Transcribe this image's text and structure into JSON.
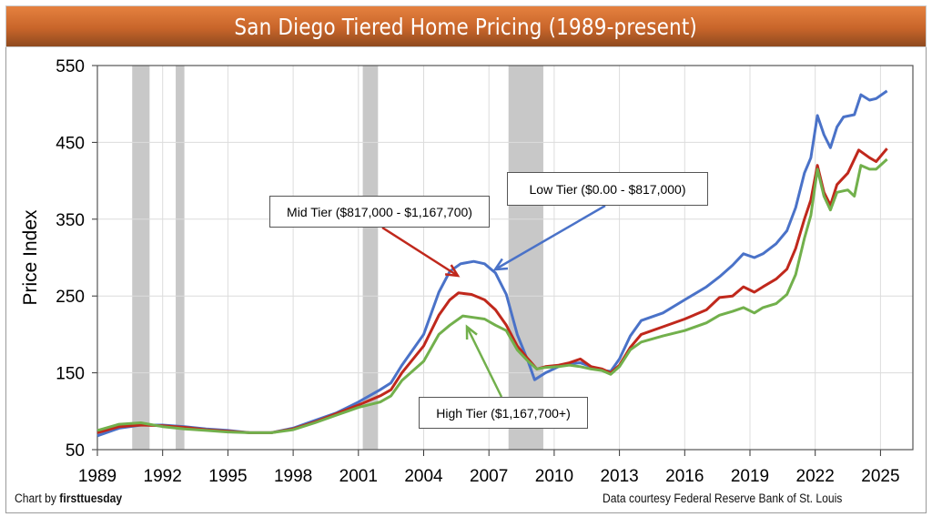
{
  "chart_data": {
    "type": "line",
    "title": "San Diego Tiered Home Pricing (1989-present)",
    "ylabel": "Price Index",
    "xlabel": "",
    "xlim": [
      1989,
      2026.5
    ],
    "ylim": [
      50,
      550
    ],
    "x_ticks": [
      "1989",
      "1992",
      "1995",
      "1998",
      "2001",
      "2004",
      "2007",
      "2010",
      "2013",
      "2016",
      "2019",
      "2022",
      "2025"
    ],
    "y_ticks": [
      "50",
      "150",
      "250",
      "350",
      "450",
      "550"
    ],
    "grid": true,
    "recessions": [
      [
        1990.6,
        1991.4
      ],
      [
        1992.6,
        1993.0
      ],
      [
        2001.2,
        2001.9
      ],
      [
        2007.9,
        2009.5
      ]
    ],
    "recession_color": "#c8c8c8",
    "series": [
      {
        "name": "Low Tier ($0.00 - $817,000)",
        "color": "#4a72c8",
        "x": [
          1989,
          1990,
          1991,
          1992,
          1993,
          1994,
          1995,
          1996,
          1997,
          1998,
          1999,
          2000,
          2001,
          2002,
          2002.5,
          2003,
          2004,
          2004.7,
          2005.2,
          2005.7,
          2006.3,
          2006.8,
          2007.3,
          2007.8,
          2008.3,
          2008.8,
          2009.1,
          2009.6,
          2010.2,
          2010.7,
          2011.2,
          2011.7,
          2012.2,
          2012.6,
          2013,
          2013.5,
          2014,
          2015,
          2016,
          2017,
          2017.6,
          2018.2,
          2018.7,
          2019.2,
          2019.6,
          2020.2,
          2020.7,
          2021.1,
          2021.5,
          2021.8,
          2022.1,
          2022.4,
          2022.7,
          2023,
          2023.3,
          2023.8,
          2024.1,
          2024.5,
          2024.8,
          2025.3
        ],
        "y": [
          68,
          78,
          82,
          82,
          80,
          77,
          75,
          72,
          72,
          78,
          88,
          98,
          112,
          128,
          137,
          160,
          200,
          255,
          282,
          292,
          295,
          292,
          280,
          252,
          200,
          165,
          141,
          150,
          158,
          162,
          163,
          158,
          153,
          152,
          168,
          198,
          218,
          228,
          245,
          262,
          275,
          290,
          305,
          300,
          305,
          318,
          335,
          365,
          410,
          430,
          485,
          460,
          443,
          470,
          483,
          486,
          512,
          505,
          507,
          517
        ]
      },
      {
        "name": "Mid Tier ($817,000 - $1,167,700)",
        "color": "#c0281c",
        "x": [
          1989,
          1990,
          1991,
          1992,
          1993,
          1994,
          1995,
          1996,
          1997,
          1998,
          1999,
          2000,
          2001,
          2002,
          2002.5,
          2003,
          2004,
          2004.7,
          2005.2,
          2005.6,
          2006.2,
          2006.8,
          2007.3,
          2007.8,
          2008.3,
          2008.8,
          2009.2,
          2009.6,
          2010.2,
          2010.7,
          2011.2,
          2011.7,
          2012.2,
          2012.6,
          2013,
          2013.5,
          2014,
          2015,
          2016,
          2017,
          2017.6,
          2018.2,
          2018.7,
          2019.2,
          2019.6,
          2020.2,
          2020.7,
          2021.1,
          2021.5,
          2021.8,
          2022.1,
          2022.4,
          2022.7,
          2023,
          2023.5,
          2024,
          2024.5,
          2024.8,
          2025.3
        ],
        "y": [
          72,
          80,
          82,
          81,
          79,
          76,
          74,
          72,
          72,
          77,
          86,
          97,
          108,
          120,
          128,
          150,
          185,
          225,
          245,
          254,
          252,
          245,
          232,
          212,
          185,
          168,
          155,
          158,
          160,
          163,
          168,
          158,
          155,
          150,
          160,
          183,
          200,
          210,
          220,
          232,
          248,
          250,
          262,
          255,
          262,
          272,
          285,
          312,
          350,
          375,
          420,
          385,
          368,
          395,
          410,
          440,
          430,
          425,
          442
        ]
      },
      {
        "name": "High Tier ($1,167,700+)",
        "color": "#72b04c",
        "x": [
          1989,
          1990,
          1991,
          1992,
          1993,
          1994,
          1995,
          1996,
          1997,
          1998,
          1999,
          2000,
          2001,
          2002,
          2002.5,
          2003,
          2004,
          2004.7,
          2005.2,
          2005.8,
          2006.3,
          2006.8,
          2007.3,
          2007.8,
          2008.3,
          2008.8,
          2009.2,
          2009.6,
          2010.2,
          2010.7,
          2011.2,
          2011.7,
          2012.2,
          2012.6,
          2013,
          2013.5,
          2014,
          2015,
          2016,
          2017,
          2017.6,
          2018.2,
          2018.7,
          2019.2,
          2019.6,
          2020.2,
          2020.7,
          2021.1,
          2021.5,
          2021.8,
          2022.1,
          2022.4,
          2022.7,
          2023,
          2023.5,
          2023.8,
          2024.1,
          2024.5,
          2024.8,
          2025.3
        ],
        "y": [
          75,
          83,
          85,
          80,
          77,
          75,
          73,
          72,
          72,
          76,
          85,
          95,
          105,
          112,
          120,
          140,
          165,
          200,
          212,
          224,
          222,
          220,
          212,
          205,
          180,
          165,
          155,
          157,
          158,
          160,
          158,
          155,
          153,
          148,
          158,
          180,
          190,
          198,
          205,
          215,
          225,
          230,
          235,
          228,
          235,
          240,
          252,
          278,
          325,
          355,
          415,
          380,
          362,
          385,
          388,
          380,
          420,
          415,
          415,
          428
        ]
      }
    ]
  },
  "annotations": {
    "low": "Low Tier ($0.00 - $817,000)",
    "mid": "Mid Tier ($817,000 - $1,167,700)",
    "high": "High Tier ($1,167,700+)"
  },
  "footer": {
    "credit_prefix": "Chart by ",
    "credit_brand": "firsttuesday",
    "source": "Data courtesy Federal Reserve Bank of St. Louis"
  }
}
